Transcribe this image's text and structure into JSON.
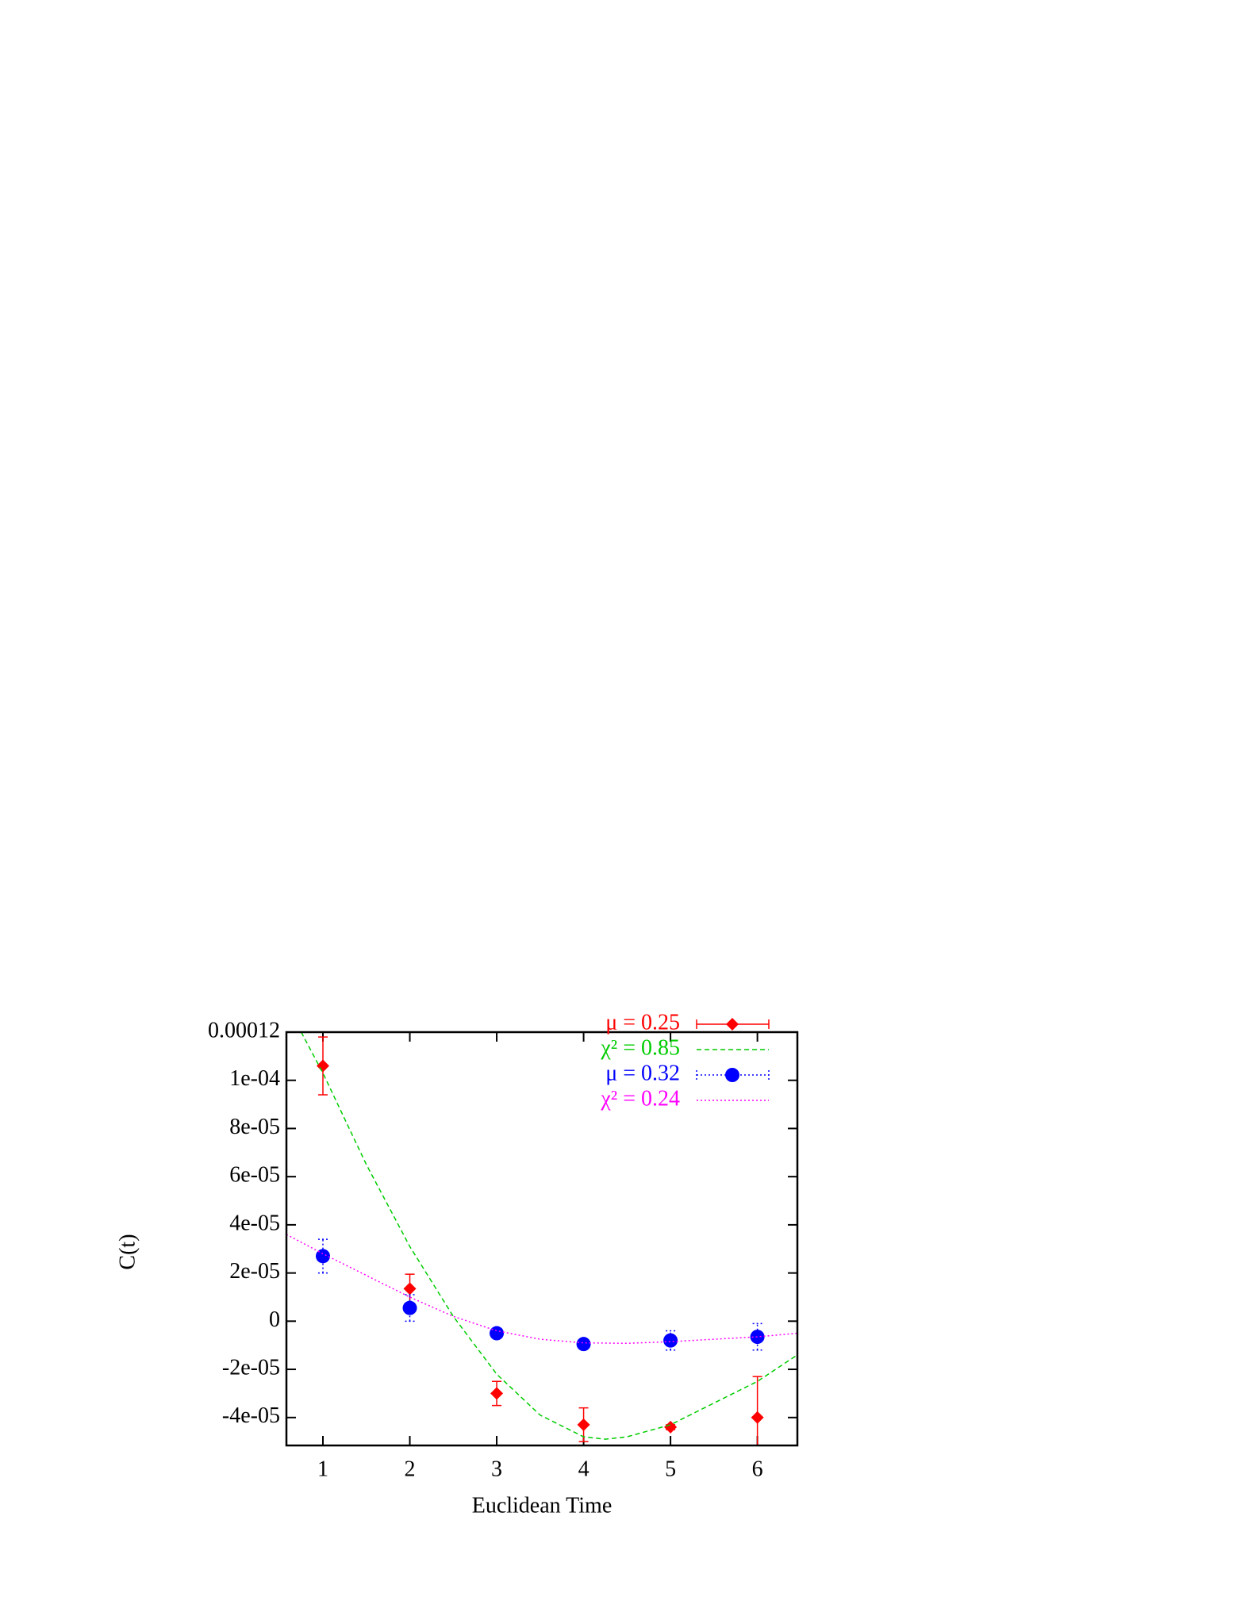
{
  "chart_data": {
    "type": "errorbar",
    "x_label": "Euclidean Time",
    "y_label": "C(t)",
    "xlim": [
      0.58,
      6.46
    ],
    "xticks": [
      1,
      2,
      3,
      4,
      5,
      6
    ],
    "ylim": [
      -5.16e-05,
      0.00012
    ],
    "yticks": [
      0.00012,
      {
        "value": 0.0001,
        "label": "1e-04"
      },
      {
        "value": 8e-05,
        "label": "8e-05"
      },
      {
        "value": 6e-05,
        "label": "6e-05"
      },
      {
        "value": 4e-05,
        "label": "4e-05"
      },
      {
        "value": 2e-05,
        "label": "2e-05"
      },
      0,
      {
        "value": -2e-05,
        "label": "-2e-05"
      },
      {
        "value": -4e-05,
        "label": "-4e-05"
      }
    ],
    "series": [
      {
        "name": "μ = 0.25",
        "color": "#ff0000",
        "kind": "points",
        "marker": "diamond",
        "x": [
          1,
          2,
          3,
          4,
          5,
          6
        ],
        "values": [
          0.000106,
          1.35e-05,
          -3e-05,
          -4.3e-05,
          -4.4e-05,
          -4e-05
        ],
        "errors": [
          1.2e-05,
          6e-06,
          5e-06,
          7e-06,
          1e-06,
          1.7e-05
        ]
      },
      {
        "name": "χ² = 0.85",
        "color": "#00cc00",
        "kind": "line",
        "dash": "6,4",
        "x": [
          0.75,
          1,
          1.5,
          2,
          2.5,
          3,
          3.5,
          4,
          4.25,
          4.5,
          5,
          5.5,
          6,
          6.46
        ],
        "values": [
          0.00012,
          0.000103,
          6.5e-05,
          3.1e-05,
          2e-06,
          -2.2e-05,
          -3.9e-05,
          -4.8e-05,
          -4.9e-05,
          -4.8e-05,
          -4.3e-05,
          -3.4e-05,
          -2.5e-05,
          -1.4e-05
        ]
      },
      {
        "name": "μ = 0.32",
        "color": "#0000ff",
        "kind": "points",
        "marker": "circle",
        "x": [
          1,
          2,
          3,
          4,
          5,
          6
        ],
        "values": [
          2.7e-05,
          5.5e-06,
          -5e-06,
          -9.5e-06,
          -8e-06,
          -6.5e-06
        ],
        "errors": [
          7e-06,
          5.5e-06,
          1e-06,
          1e-06,
          4e-06,
          5.5e-06
        ]
      },
      {
        "name": "χ² = 0.24",
        "color": "#ff00ff",
        "kind": "line",
        "dash": "2,3",
        "x": [
          0.58,
          1,
          1.5,
          2,
          2.5,
          3,
          3.5,
          4,
          4.5,
          5,
          5.5,
          6,
          6.46
        ],
        "values": [
          3.6e-05,
          2.8e-05,
          1.9e-05,
          1e-05,
          2e-06,
          -4e-06,
          -7.5e-06,
          -9e-06,
          -9.2e-06,
          -8.5e-06,
          -7.5e-06,
          -6.5e-06,
          -5e-06
        ]
      }
    ]
  }
}
